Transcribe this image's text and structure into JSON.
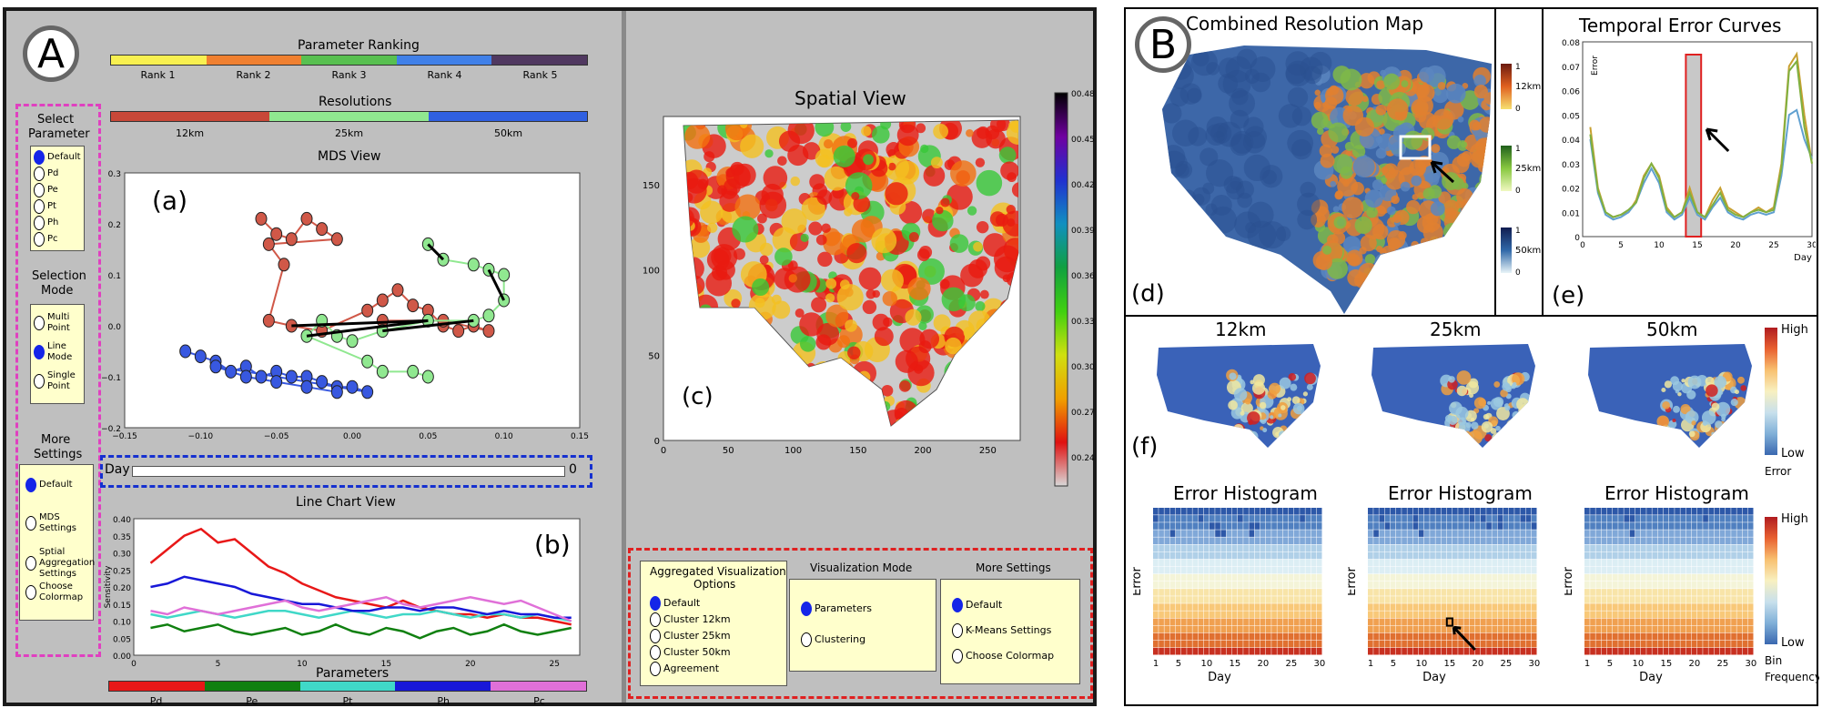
{
  "panelA": {
    "badge": "A",
    "parameter_ranking": {
      "title": "Parameter Ranking",
      "ranks": [
        "Rank 1",
        "Rank 2",
        "Rank 3",
        "Rank 4",
        "Rank 5"
      ],
      "colors": [
        "#f8f050",
        "#f08030",
        "#58c050",
        "#4080e8",
        "#503860"
      ]
    },
    "resolutions": {
      "title": "Resolutions",
      "labels": [
        "12km",
        "25km",
        "50km"
      ],
      "colors": [
        "#c84838",
        "#90e890",
        "#3060e0"
      ]
    },
    "select_parameter": {
      "title_line1": "Select",
      "title_line2": "Parameter",
      "options": [
        "Default",
        "Pd",
        "Pe",
        "Pt",
        "Ph",
        "Pc"
      ],
      "selected": 0
    },
    "selection_mode": {
      "title_line1": "Selection",
      "title_line2": "Mode",
      "options": [
        [
          "Multi",
          "Point"
        ],
        [
          "Line",
          "Mode"
        ],
        [
          "Single",
          "Point"
        ]
      ],
      "selected": 1
    },
    "more_settings": {
      "title_line1": "More",
      "title_line2": "Settings",
      "options": [
        [
          "Default"
        ],
        [
          "MDS",
          "Settings"
        ],
        [
          "Sptial",
          "Aggregation",
          "Settings"
        ],
        [
          "Choose",
          "Colormap"
        ]
      ],
      "selected": 0
    },
    "mds_view": {
      "title": "MDS View",
      "label": "(a)",
      "x_ticks": [
        "−0.15",
        "−0.10",
        "−0.05",
        "0.00",
        "0.05",
        "0.10",
        "0.15"
      ],
      "y_ticks": [
        "0.3",
        "0.2",
        "0.1",
        "0.0",
        "−0.1",
        "−0.2"
      ]
    },
    "day": {
      "label": "Day",
      "value": "0"
    },
    "line_chart": {
      "title": "Line Chart View",
      "label": "(b)",
      "ylabel": "Sensitivity",
      "x_ticks": [
        "0",
        "5",
        "10",
        "15",
        "20",
        "25"
      ],
      "y_ticks": [
        "0.40",
        "0.35",
        "0.30",
        "0.25",
        "0.20",
        "0.15",
        "0.10",
        "0.05",
        "0.00"
      ]
    },
    "parameters": {
      "title": "Parameters",
      "labels": [
        "Pd",
        "Pe",
        "Pt",
        "Ph",
        "Pc"
      ],
      "colors": [
        "#e81818",
        "#108010",
        "#40d8c8",
        "#1818d8",
        "#e070d8"
      ]
    },
    "spatial_view": {
      "title": "Spatial View",
      "label": "(c)",
      "x_ticks": [
        "0",
        "50",
        "100",
        "150",
        "200",
        "250"
      ],
      "y_ticks": [
        "150",
        "100",
        "50",
        "0"
      ],
      "colorbar_ticks": [
        "00.48",
        "00.45",
        "00.42",
        "00.39",
        "00.36",
        "00.33",
        "00.30",
        "00.27",
        "00.24"
      ]
    },
    "aggregated": {
      "title_line1": "Aggregated Visualization",
      "title_line2": "Options",
      "options": [
        "Default",
        "Cluster 12km",
        "Cluster 25km",
        "Cluster 50km",
        "Agreement"
      ],
      "selected": 0
    },
    "vis_mode": {
      "title": "Visualization Mode",
      "options": [
        "Parameters",
        "Clustering"
      ],
      "selected": 0
    },
    "more_settings2": {
      "title": "More Settings",
      "options": [
        "Default",
        "K-Means Settings",
        "Choose Colormap"
      ],
      "selected": 0
    }
  },
  "panelB": {
    "badge": "B",
    "combined_map": {
      "title": "Combined Resolution Map",
      "label": "(d)"
    },
    "legend": [
      {
        "top": "1",
        "name": "12km",
        "bottom": "0"
      },
      {
        "top": "1",
        "name": "25km",
        "bottom": "0"
      },
      {
        "top": "1",
        "name": "50km",
        "bottom": "0"
      }
    ],
    "temporal": {
      "title": "Temporal Error Curves",
      "label": "(e)",
      "ylabel": "Error",
      "xlabel": "Day",
      "y_ticks": [
        "0.08",
        "0.07",
        "0.06",
        "0.05",
        "0.04",
        "0.03",
        "0.02",
        "0.01",
        "0"
      ],
      "x_ticks": [
        "0",
        "5",
        "10",
        "15",
        "20",
        "25",
        "30"
      ]
    },
    "section_f": {
      "label": "(f)",
      "maps": [
        "12km",
        "25km",
        "50km"
      ],
      "hist_title": "Error Histogram",
      "ylabel": "Error",
      "xlabel": "Day",
      "x_ticks": [
        "1",
        "5",
        "10",
        "15",
        "20",
        "25",
        "30"
      ]
    },
    "error_scale": {
      "high": "High",
      "low": "Low",
      "name": "Error"
    },
    "freq_scale": {
      "high": "High",
      "low": "Low",
      "name1": "Bin",
      "name2": "Frequency"
    }
  }
}
